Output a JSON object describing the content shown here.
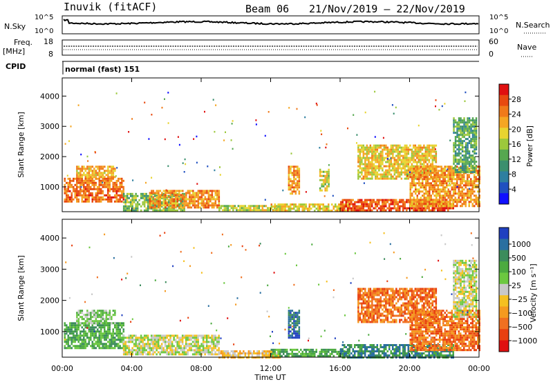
{
  "header": {
    "station": "Inuvik (fitACF)",
    "beam": "Beam 06",
    "dates": "21/Nov/2019 – 22/Nov/2019"
  },
  "top_panels": {
    "nsky_label": "N.Sky",
    "nsky_ticks": [
      "10^5",
      "10^0"
    ],
    "nsearch_label": "N.Search",
    "nsearch_ticks": [
      "10^5",
      "10^0"
    ],
    "freq_label_1": "Freq.",
    "freq_label_2": "[MHz]",
    "freq_ticks": [
      "18",
      "8"
    ],
    "nave_label": "Nave",
    "nave_ticks": [
      "60",
      "0"
    ],
    "cpid_label": "CPID",
    "cpid_text": "normal (fast) 151"
  },
  "chart_data": [
    {
      "type": "heatmap",
      "name": "power",
      "ylabel": "Slant Range [km]",
      "ylim": [
        180,
        4600
      ],
      "yticks": [
        "1000",
        "2000",
        "3000",
        "4000"
      ],
      "xlabel": "Time UT",
      "xticks": [
        "00:00",
        "04:00",
        "08:00",
        "12:00",
        "16:00",
        "20:00",
        "00:00"
      ],
      "xlim_hours": [
        0,
        24
      ],
      "colorbar": {
        "label": "Power [dB]",
        "ticks": [
          "4",
          "8",
          "12",
          "16",
          "20",
          "24",
          "28"
        ],
        "range": [
          0,
          32
        ],
        "colors": [
          "#1010ff",
          "#2050c0",
          "#2e7fa0",
          "#3b8f6e",
          "#56a850",
          "#9cc83c",
          "#e8d430",
          "#f5a623",
          "#f07a1a",
          "#e84a10",
          "#e01010"
        ]
      },
      "regions": [
        {
          "t": [
            0.1,
            3.5
          ],
          "r": [
            500,
            1300
          ],
          "level": 26
        },
        {
          "t": [
            0.8,
            3.0
          ],
          "r": [
            1300,
            1700
          ],
          "level": 22
        },
        {
          "t": [
            3.5,
            7.0
          ],
          "r": [
            250,
            800
          ],
          "level": 14
        },
        {
          "t": [
            5.0,
            9.0
          ],
          "r": [
            300,
            900
          ],
          "level": 24
        },
        {
          "t": [
            9.0,
            12.5
          ],
          "r": [
            200,
            400
          ],
          "level": 18
        },
        {
          "t": [
            12.0,
            16.5
          ],
          "r": [
            200,
            450
          ],
          "level": 20
        },
        {
          "t": [
            13.0,
            13.6
          ],
          "r": [
            800,
            1700
          ],
          "level": 24
        },
        {
          "t": [
            14.8,
            15.3
          ],
          "r": [
            900,
            1600
          ],
          "level": 18
        },
        {
          "t": [
            16.0,
            22.5
          ],
          "r": [
            200,
            600
          ],
          "level": 28
        },
        {
          "t": [
            17.0,
            21.5
          ],
          "r": [
            1300,
            2400
          ],
          "level": 20
        },
        {
          "t": [
            20.0,
            24.0
          ],
          "r": [
            400,
            1700
          ],
          "level": 24
        },
        {
          "t": [
            22.5,
            23.8
          ],
          "r": [
            1500,
            3300
          ],
          "level": 12
        }
      ]
    },
    {
      "type": "heatmap",
      "name": "velocity",
      "ylabel": "Slant Range [km]",
      "ylim": [
        180,
        4600
      ],
      "yticks": [
        "1000",
        "2000",
        "3000",
        "4000"
      ],
      "xlabel": "Time UT",
      "xticks": [
        "00:00",
        "04:00",
        "08:00",
        "12:00",
        "16:00",
        "20:00",
        "00:00"
      ],
      "xlim_hours": [
        0,
        24
      ],
      "colorbar": {
        "label": "Velocity [m s⁻¹]",
        "ticks": [
          "1000",
          "500",
          "100",
          "25",
          "−25",
          "−100",
          "−500",
          "−1000"
        ],
        "colors": [
          "#2040c0",
          "#2a6fa0",
          "#3c8c5c",
          "#4caa40",
          "#6cc840",
          "#c8c8c8",
          "#f5c020",
          "#f59a20",
          "#f07020",
          "#e84010",
          "#e01010"
        ]
      },
      "regions": [
        {
          "t": [
            0.1,
            3.5
          ],
          "r": [
            500,
            1300
          ],
          "level": 3
        },
        {
          "t": [
            0.8,
            3.0
          ],
          "r": [
            1300,
            1700
          ],
          "level": 4
        },
        {
          "t": [
            3.5,
            9.0
          ],
          "r": [
            250,
            900
          ],
          "level": 5
        },
        {
          "t": [
            9.0,
            12.5
          ],
          "r": [
            200,
            400
          ],
          "level": 6
        },
        {
          "t": [
            12.0,
            16.5
          ],
          "r": [
            200,
            450
          ],
          "level": 3
        },
        {
          "t": [
            13.0,
            13.6
          ],
          "r": [
            800,
            1700
          ],
          "level": 1
        },
        {
          "t": [
            16.0,
            22.5
          ],
          "r": [
            200,
            600
          ],
          "level": 2
        },
        {
          "t": [
            17.0,
            21.5
          ],
          "r": [
            1300,
            2400
          ],
          "level": 8
        },
        {
          "t": [
            20.0,
            24.0
          ],
          "r": [
            400,
            1700
          ],
          "level": 8
        },
        {
          "t": [
            22.5,
            23.8
          ],
          "r": [
            1500,
            3300
          ],
          "level": 5
        }
      ]
    }
  ]
}
